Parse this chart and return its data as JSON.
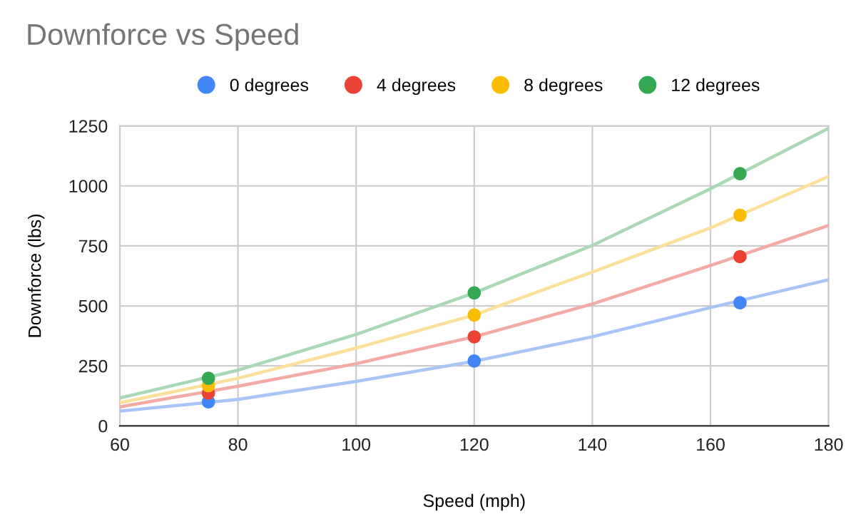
{
  "chart_data": {
    "type": "scatter",
    "title": "Downforce vs Speed",
    "xlabel": "Speed (mph)",
    "ylabel": "Downforce (lbs)",
    "xlim": [
      60,
      180
    ],
    "xticks": [
      60,
      80,
      100,
      120,
      140,
      160,
      180
    ],
    "ylim": [
      0,
      1250
    ],
    "yticks": [
      0,
      250,
      500,
      750,
      1000,
      1250
    ],
    "grid": true,
    "legend": "top",
    "marker": "circle",
    "series": [
      {
        "name": "0 degrees",
        "color": "#4285f4",
        "x": [
          75,
          120,
          165
        ],
        "values": [
          100,
          270,
          513
        ]
      },
      {
        "name": "4 degrees",
        "color": "#ea4335",
        "x": [
          75,
          120,
          165
        ],
        "values": [
          136,
          371,
          705
        ]
      },
      {
        "name": "8 degrees",
        "color": "#fbbc04",
        "x": [
          75,
          120,
          165
        ],
        "values": [
          167,
          462,
          878
        ]
      },
      {
        "name": "12 degrees",
        "color": "#34a853",
        "x": [
          75,
          120,
          165
        ],
        "values": [
          198,
          554,
          1051
        ]
      },
      {
        "type": "line",
        "marker": "none",
        "color": "#a9c5f7",
        "x": [
          60,
          80,
          100,
          120,
          140,
          160,
          180
        ],
        "values": [
          61,
          110,
          185,
          269,
          371,
          493,
          609
        ]
      },
      {
        "type": "line",
        "marker": "none",
        "color": "#f4aaa4",
        "x": [
          60,
          80,
          100,
          120,
          140,
          160,
          180
        ],
        "values": [
          79,
          165,
          259,
          371,
          508,
          668,
          835
        ]
      },
      {
        "type": "line",
        "marker": "none",
        "color": "#fce09a",
        "x": [
          60,
          80,
          100,
          120,
          140,
          160,
          180
        ],
        "values": [
          96,
          198,
          324,
          462,
          641,
          825,
          1039
        ]
      },
      {
        "type": "line",
        "marker": "none",
        "color": "#a8d8b5",
        "x": [
          60,
          80,
          100,
          120,
          140,
          160,
          180
        ],
        "values": [
          116,
          232,
          381,
          554,
          752,
          988,
          1240
        ]
      }
    ]
  }
}
